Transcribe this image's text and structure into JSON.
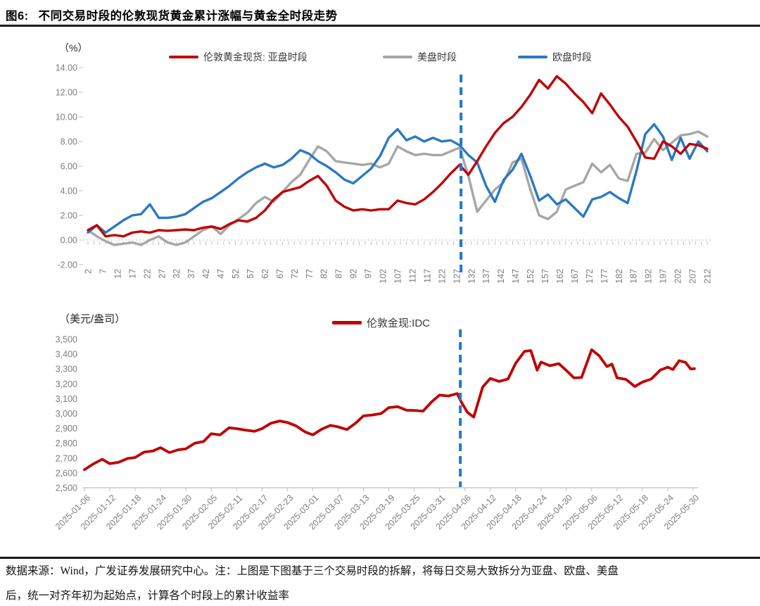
{
  "figure": {
    "label": "图6:",
    "title": "不同交易时段的伦敦现货黄金累计涨幅与黄金全时段走势"
  },
  "footer": {
    "line1": "数据来源：Wind，广发证券发展研究中心。注：上图是下图基于三个交易时段的拆解，将每日交易大致拆分为亚盘、欧盘、美盘",
    "line2": "后，统一对齐年初为起始点，计算各个时段上的累计收益率"
  },
  "colors": {
    "red": "#c00000",
    "gray": "#a6a6a6",
    "blue": "#2b78c2",
    "dashed": "#1f78ce",
    "axis_text": "#7d7d7d"
  },
  "chart_data": [
    {
      "type": "line",
      "unit_label": "（%）",
      "ylim": [
        -2,
        14
      ],
      "ytick_step": 2,
      "grid": "zero-line-only",
      "legend_position": "top",
      "dashed_x": 128.5,
      "y_ticks": [
        "14.00",
        "12.00",
        "10.00",
        "8.00",
        "6.00",
        "4.00",
        "2.00",
        "0.00",
        "-2.00"
      ],
      "x_ticks": [
        2,
        7,
        12,
        17,
        22,
        27,
        32,
        37,
        42,
        47,
        52,
        57,
        62,
        67,
        72,
        77,
        82,
        87,
        92,
        97,
        102,
        107,
        112,
        117,
        122,
        127,
        132,
        137,
        142,
        147,
        152,
        157,
        162,
        167,
        172,
        177,
        182,
        187,
        192,
        197,
        202,
        207,
        212
      ],
      "series": [
        {
          "name": "伦敦黄金现货: 亚盘时段",
          "color": "red",
          "x_start": 2,
          "x_step": 3,
          "values": [
            0.8,
            1.2,
            0.3,
            0.4,
            0.3,
            0.6,
            0.7,
            0.6,
            0.8,
            0.75,
            0.8,
            0.85,
            0.8,
            1.0,
            1.1,
            0.9,
            1.3,
            1.6,
            1.5,
            1.8,
            2.4,
            3.3,
            3.9,
            4.1,
            4.3,
            4.8,
            5.2,
            4.4,
            3.2,
            2.7,
            2.4,
            2.5,
            2.4,
            2.5,
            2.5,
            3.2,
            3.0,
            2.9,
            3.3,
            3.9,
            4.6,
            5.4,
            6.1,
            5.3,
            6.4,
            7.6,
            8.7,
            9.5,
            10.0,
            10.8,
            11.8,
            13.0,
            12.3,
            13.3,
            12.7,
            11.9,
            11.2,
            10.3,
            11.9,
            11.0,
            10.0,
            9.2,
            8.0,
            6.7,
            6.6,
            8.0,
            7.6,
            7.0,
            7.8,
            7.7,
            7.4
          ]
        },
        {
          "name": "美盘时段",
          "color": "gray",
          "x_start": 2,
          "x_step": 3,
          "values": [
            0.8,
            0.3,
            -0.1,
            -0.4,
            -0.3,
            -0.2,
            -0.4,
            0.0,
            0.3,
            -0.2,
            -0.4,
            -0.2,
            0.3,
            0.8,
            1.1,
            0.5,
            1.2,
            1.7,
            2.2,
            3.0,
            3.5,
            3.1,
            3.9,
            4.7,
            5.3,
            6.5,
            7.6,
            7.2,
            6.4,
            6.3,
            6.2,
            6.1,
            6.2,
            5.9,
            6.2,
            7.6,
            7.2,
            6.9,
            7.0,
            6.9,
            6.9,
            7.2,
            7.5,
            5.2,
            2.3,
            3.2,
            4.1,
            4.7,
            6.3,
            6.6,
            4.1,
            2.0,
            1.7,
            2.3,
            4.1,
            4.4,
            4.7,
            6.2,
            5.5,
            6.1,
            5.0,
            4.8,
            7.0,
            7.1,
            8.2,
            7.3,
            7.9,
            8.5,
            8.6,
            8.8,
            8.4
          ]
        },
        {
          "name": "欧盘时段",
          "color": "blue",
          "x_start": 2,
          "x_step": 3,
          "values": [
            0.6,
            1.2,
            0.6,
            1.1,
            1.6,
            2.0,
            2.1,
            2.9,
            1.8,
            1.8,
            1.9,
            2.1,
            2.6,
            3.1,
            3.4,
            3.9,
            4.4,
            5.0,
            5.5,
            5.9,
            6.2,
            5.9,
            6.1,
            6.6,
            7.3,
            7.0,
            6.4,
            6.0,
            5.5,
            4.9,
            4.6,
            5.2,
            5.8,
            6.8,
            8.3,
            9.0,
            8.1,
            8.4,
            8.0,
            8.3,
            8.0,
            8.1,
            7.7,
            6.9,
            6.3,
            4.4,
            3.1,
            4.9,
            5.7,
            7.0,
            5.2,
            3.2,
            3.7,
            2.9,
            3.3,
            2.6,
            1.9,
            3.3,
            3.5,
            3.9,
            3.4,
            3.0,
            5.6,
            8.6,
            9.4,
            8.4,
            6.5,
            8.3,
            6.6,
            8.0,
            7.2
          ]
        }
      ]
    },
    {
      "type": "line",
      "unit_label": "（美元/盎司）",
      "ylim": [
        2500,
        3500
      ],
      "ytick_step": 100,
      "grid": "none",
      "legend_position": "top",
      "dashed_x": 14.82,
      "y_ticks": [
        "3,500",
        "3,400",
        "3,300",
        "3,200",
        "3,100",
        "3,000",
        "2,900",
        "2,800",
        "2,700",
        "2,600",
        "2,500"
      ],
      "x_tick_labels": [
        "2025-01-06",
        "2025-01-12",
        "2025-01-18",
        "2025-01-24",
        "2025-01-30",
        "2025-02-05",
        "2025-02-11",
        "2025-02-17",
        "2025-02-23",
        "2025-03-01",
        "2025-03-07",
        "2025-03-13",
        "2025-03-19",
        "2025-03-25",
        "2025-03-31",
        "2025-04-06",
        "2025-04-12",
        "2025-04-18",
        "2025-04-24",
        "2025-04-30",
        "2025-05-06",
        "2025-05-12",
        "2025-05-18",
        "2025-05-24",
        "2025-05-30"
      ],
      "series": [
        {
          "name": "伦敦金现:IDC",
          "color": "red",
          "points": [
            [
              0,
              2622
            ],
            [
              0.35,
              2660
            ],
            [
              0.7,
              2692
            ],
            [
              1,
              2662
            ],
            [
              1.35,
              2672
            ],
            [
              1.7,
              2697
            ],
            [
              2,
              2704
            ],
            [
              2.35,
              2740
            ],
            [
              2.7,
              2748
            ],
            [
              3,
              2770
            ],
            [
              3.35,
              2737
            ],
            [
              3.7,
              2756
            ],
            [
              4,
              2762
            ],
            [
              4.35,
              2800
            ],
            [
              4.7,
              2812
            ],
            [
              5,
              2864
            ],
            [
              5.35,
              2856
            ],
            [
              5.7,
              2904
            ],
            [
              6,
              2898
            ],
            [
              6.35,
              2888
            ],
            [
              6.7,
              2880
            ],
            [
              7,
              2898
            ],
            [
              7.35,
              2934
            ],
            [
              7.7,
              2950
            ],
            [
              8,
              2940
            ],
            [
              8.35,
              2916
            ],
            [
              8.7,
              2876
            ],
            [
              9,
              2856
            ],
            [
              9.35,
              2894
            ],
            [
              9.7,
              2920
            ],
            [
              10,
              2910
            ],
            [
              10.35,
              2892
            ],
            [
              10.7,
              2936
            ],
            [
              11,
              2984
            ],
            [
              11.35,
              2990
            ],
            [
              11.7,
              3000
            ],
            [
              12,
              3040
            ],
            [
              12.35,
              3046
            ],
            [
              12.7,
              3022
            ],
            [
              13,
              3021
            ],
            [
              13.35,
              3016
            ],
            [
              13.7,
              3080
            ],
            [
              14,
              3124
            ],
            [
              14.35,
              3118
            ],
            [
              14.7,
              3134
            ],
            [
              14.85,
              3080
            ],
            [
              15.1,
              3008
            ],
            [
              15.35,
              2976
            ],
            [
              15.7,
              3178
            ],
            [
              16,
              3236
            ],
            [
              16.35,
              3216
            ],
            [
              16.7,
              3232
            ],
            [
              17,
              3338
            ],
            [
              17.35,
              3418
            ],
            [
              17.6,
              3424
            ],
            [
              17.85,
              3292
            ],
            [
              18,
              3346
            ],
            [
              18.35,
              3322
            ],
            [
              18.7,
              3336
            ],
            [
              19,
              3290
            ],
            [
              19.3,
              3240
            ],
            [
              19.6,
              3242
            ],
            [
              20,
              3430
            ],
            [
              20.3,
              3388
            ],
            [
              20.6,
              3316
            ],
            [
              20.8,
              3332
            ],
            [
              21,
              3240
            ],
            [
              21.35,
              3230
            ],
            [
              21.7,
              3182
            ],
            [
              22,
              3212
            ],
            [
              22.35,
              3232
            ],
            [
              22.7,
              3292
            ],
            [
              23,
              3312
            ],
            [
              23.2,
              3296
            ],
            [
              23.45,
              3356
            ],
            [
              23.7,
              3344
            ],
            [
              23.9,
              3300
            ],
            [
              24.05,
              3302
            ]
          ]
        }
      ]
    }
  ]
}
